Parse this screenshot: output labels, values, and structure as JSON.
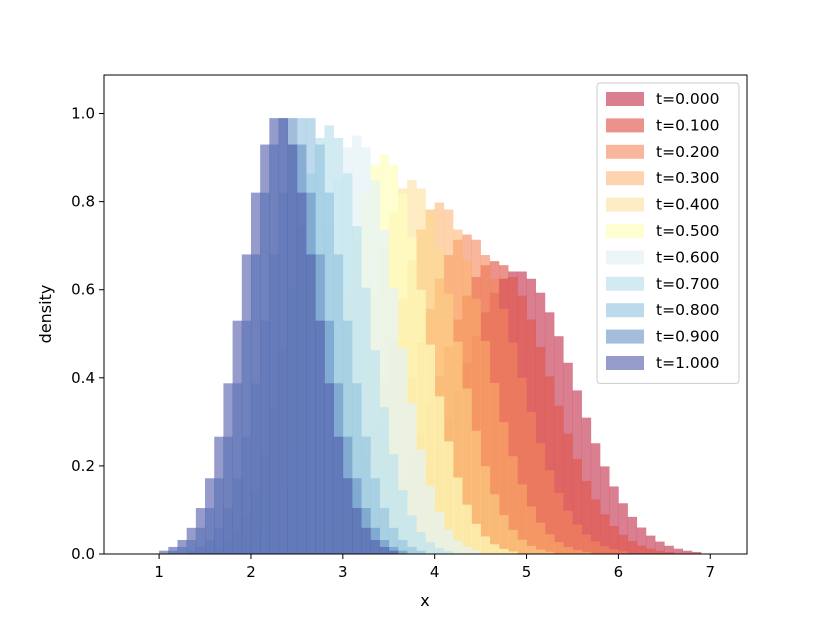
{
  "chart_data": {
    "type": "bar",
    "xlabel": "x",
    "ylabel": "density",
    "xlim": [
      0.4,
      7.4
    ],
    "ylim": [
      0,
      1.0875
    ],
    "xticks": [
      "1",
      "2",
      "3",
      "4",
      "5",
      "6",
      "7"
    ],
    "yticks": [
      "0.0",
      "0.2",
      "0.4",
      "0.6",
      "0.8",
      "1.0"
    ],
    "bin_width": 0.1,
    "legend_position": "top-right",
    "series": [
      {
        "name": "t=0.000",
        "color": "#c9485f",
        "opacity": 0.7,
        "mean": 4.9,
        "sd": 0.62
      },
      {
        "name": "t=0.100",
        "color": "#e0584d",
        "opacity": 0.65,
        "mean": 4.65,
        "sd": 0.6
      },
      {
        "name": "t=0.200",
        "color": "#f4875b",
        "opacity": 0.6,
        "mean": 4.35,
        "sd": 0.55
      },
      {
        "name": "t=0.300",
        "color": "#fbb069",
        "opacity": 0.55,
        "mean": 4.05,
        "sd": 0.5
      },
      {
        "name": "t=0.400",
        "color": "#fedb8a",
        "opacity": 0.5,
        "mean": 3.75,
        "sd": 0.47
      },
      {
        "name": "t=0.500",
        "color": "#fefdbd",
        "opacity": 0.7,
        "mean": 3.45,
        "sd": 0.44
      },
      {
        "name": "t=0.600",
        "color": "#e4f2f7",
        "opacity": 0.7,
        "mean": 3.15,
        "sd": 0.42
      },
      {
        "name": "t=0.700",
        "color": "#bfe2ec",
        "opacity": 0.7,
        "mean": 2.85,
        "sd": 0.41
      },
      {
        "name": "t=0.800",
        "color": "#8fc1de",
        "opacity": 0.6,
        "mean": 2.6,
        "sd": 0.4
      },
      {
        "name": "t=0.900",
        "color": "#6791c4",
        "opacity": 0.6,
        "mean": 2.4,
        "sd": 0.4
      },
      {
        "name": "t=1.000",
        "color": "#4e5aa8",
        "opacity": 0.6,
        "mean": 2.3,
        "sd": 0.4
      }
    ]
  }
}
